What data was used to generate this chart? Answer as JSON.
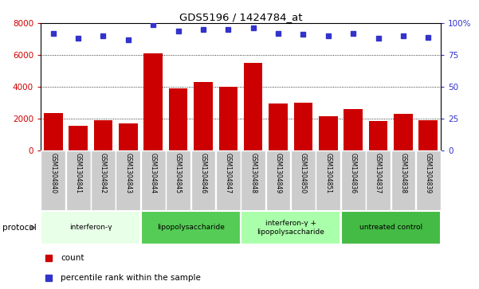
{
  "title": "GDS5196 / 1424784_at",
  "samples": [
    "GSM1304840",
    "GSM1304841",
    "GSM1304842",
    "GSM1304843",
    "GSM1304844",
    "GSM1304845",
    "GSM1304846",
    "GSM1304847",
    "GSM1304848",
    "GSM1304849",
    "GSM1304850",
    "GSM1304851",
    "GSM1304836",
    "GSM1304837",
    "GSM1304838",
    "GSM1304839"
  ],
  "counts": [
    2350,
    1550,
    1900,
    1700,
    6100,
    3900,
    4300,
    4000,
    5500,
    2950,
    3000,
    2150,
    2600,
    1850,
    2300,
    1900
  ],
  "percentiles": [
    92,
    88,
    90,
    87,
    99,
    94,
    95,
    95,
    96,
    92,
    91,
    90,
    92,
    88,
    90,
    89
  ],
  "ylim_left": [
    0,
    8000
  ],
  "ylim_right": [
    0,
    100
  ],
  "yticks_left": [
    0,
    2000,
    4000,
    6000,
    8000
  ],
  "yticks_right": [
    0,
    25,
    50,
    75,
    100
  ],
  "bar_color": "#cc0000",
  "dot_color": "#3333cc",
  "groups": [
    {
      "label": "interferon-γ",
      "start": 0,
      "end": 4,
      "color": "#e8ffe8"
    },
    {
      "label": "lipopolysaccharide",
      "start": 4,
      "end": 8,
      "color": "#55cc55"
    },
    {
      "label": "interferon-γ +\nlipopolysaccharide",
      "start": 8,
      "end": 12,
      "color": "#aaffaa"
    },
    {
      "label": "untreated control",
      "start": 12,
      "end": 16,
      "color": "#44bb44"
    }
  ],
  "protocol_label": "protocol",
  "legend_count_label": "count",
  "legend_pct_label": "percentile rank within the sample",
  "tick_bg_color": "#cccccc"
}
